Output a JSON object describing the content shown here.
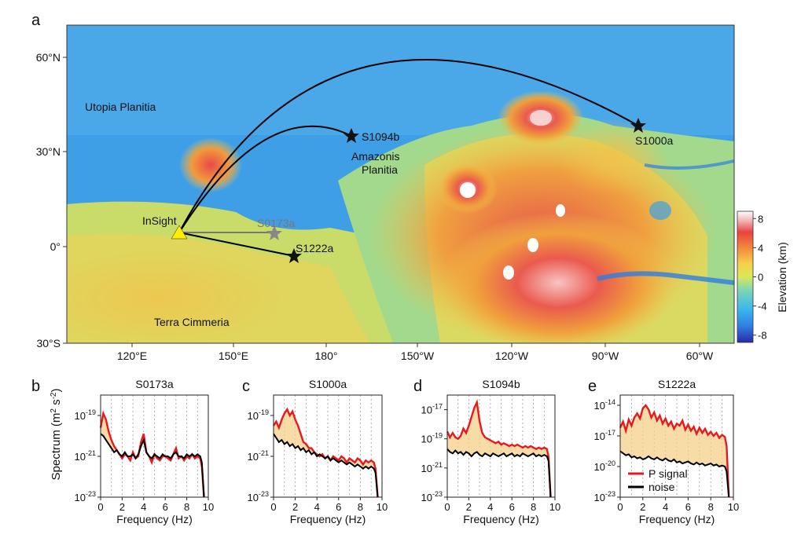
{
  "panel_letters": [
    "a",
    "b",
    "c",
    "d",
    "e"
  ],
  "map": {
    "regions": [
      "Utopia Planitia",
      "Amazonis",
      "Planitia",
      "Terra Cimmeria"
    ],
    "lat_ticks": [
      "60°N",
      "30°N",
      "0°",
      "30°S"
    ],
    "lon_ticks": [
      "120°E",
      "150°E",
      "180°",
      "150°W",
      "120°W",
      "90°W",
      "60°W"
    ],
    "lander": "InSight",
    "events": [
      {
        "name": "S1094b",
        "lon": -172,
        "lat": 35
      },
      {
        "name": "S1000a",
        "lon": -79,
        "lat": 38
      },
      {
        "name": "S0173a",
        "lon": 164,
        "lat": 5
      },
      {
        "name": "S1222a",
        "lon": 171,
        "lat": -3
      }
    ],
    "colorbar": {
      "label": "Elevation (km)",
      "ticks": [
        "8",
        "4",
        "0",
        "-4",
        "-8"
      ],
      "range": [
        -9,
        9
      ],
      "colors": [
        "#2a2aa8",
        "#2f7de0",
        "#38b7ee",
        "#7ed6b4",
        "#d9e85a",
        "#f6d04d",
        "#f28a3b",
        "#e9433f",
        "#f3b6b6",
        "#ffffff"
      ]
    }
  },
  "chart_data": [
    {
      "type": "area",
      "title": "S0173a",
      "xlabel": "Frequency (Hz)",
      "ylabel": "Spectrum (m² s⁻²)",
      "xlim": [
        0,
        10
      ],
      "ylog": true,
      "ylim_exp": [
        -23,
        -18
      ],
      "xticks": [
        "0",
        "2",
        "4",
        "6",
        "8",
        "10"
      ],
      "yticks": [
        "10",
        "10",
        "10"
      ],
      "ytick_exps": [
        "-19",
        "-21",
        "-23"
      ],
      "ytick_vals": [
        -19,
        -21,
        -23
      ],
      "x": [
        0,
        0.25,
        0.5,
        0.75,
        1,
        1.25,
        1.5,
        1.75,
        2,
        2.25,
        2.5,
        2.75,
        3,
        3.25,
        3.5,
        3.75,
        4,
        4.25,
        4.5,
        4.75,
        5,
        5.25,
        5.5,
        5.75,
        6,
        6.25,
        6.5,
        6.75,
        7,
        7.25,
        7.5,
        7.75,
        8,
        8.25,
        8.5,
        8.75,
        9,
        9.25,
        9.4,
        9.6
      ],
      "series": [
        {
          "name": "P signal",
          "color": "#e8191c",
          "values": [
            -19.6,
            -18.9,
            -19.2,
            -19.8,
            -20.2,
            -20.5,
            -20.7,
            -20.9,
            -21.1,
            -20.9,
            -21.0,
            -21.2,
            -20.8,
            -21.1,
            -21.0,
            -20.3,
            -19.9,
            -20.8,
            -21.0,
            -21.3,
            -20.9,
            -21.1,
            -21.2,
            -21.0,
            -21.0,
            -21.1,
            -21.2,
            -20.9,
            -20.6,
            -21.1,
            -21.0,
            -21.2,
            -21.0,
            -21.1,
            -20.9,
            -21.1,
            -21.0,
            -21.1,
            -21.5,
            -23
          ]
        },
        {
          "name": "noise",
          "color": "#000000",
          "values": [
            -19.9,
            -20.0,
            -20.2,
            -20.4,
            -20.6,
            -20.8,
            -20.7,
            -20.9,
            -21.0,
            -20.8,
            -21.0,
            -21.0,
            -20.9,
            -21.1,
            -20.9,
            -20.5,
            -20.2,
            -20.8,
            -21.0,
            -21.1,
            -20.9,
            -21.0,
            -21.1,
            -20.9,
            -21.0,
            -21.0,
            -21.1,
            -20.9,
            -20.8,
            -21.0,
            -21.0,
            -21.1,
            -20.9,
            -21.0,
            -20.9,
            -21.0,
            -20.9,
            -21.0,
            -21.3,
            -23
          ]
        }
      ]
    },
    {
      "type": "area",
      "title": "S1000a",
      "xlabel": "Frequency (Hz)",
      "ylabel": "",
      "xlim": [
        0,
        10
      ],
      "ylog": true,
      "ylim_exp": [
        -23,
        -18
      ],
      "xticks": [
        "0",
        "2",
        "4",
        "6",
        "8",
        "10"
      ],
      "yticks": [
        "10",
        "10",
        "10"
      ],
      "ytick_exps": [
        "-19",
        "-21",
        "-23"
      ],
      "ytick_vals": [
        -19,
        -21,
        -23
      ],
      "x": [
        0,
        0.25,
        0.5,
        0.75,
        1,
        1.25,
        1.5,
        1.75,
        2,
        2.25,
        2.5,
        2.75,
        3,
        3.25,
        3.5,
        3.75,
        4,
        4.25,
        4.5,
        4.75,
        5,
        5.25,
        5.5,
        5.75,
        6,
        6.25,
        6.5,
        6.75,
        7,
        7.25,
        7.5,
        7.75,
        8,
        8.25,
        8.5,
        8.75,
        9,
        9.25,
        9.4,
        9.6
      ],
      "series": [
        {
          "name": "P signal",
          "color": "#e8191c",
          "values": [
            -19.5,
            -19.3,
            -19.6,
            -19.2,
            -18.9,
            -18.7,
            -19.0,
            -18.8,
            -19.2,
            -19.5,
            -19.9,
            -20.3,
            -20.4,
            -20.6,
            -20.6,
            -20.8,
            -20.9,
            -21.0,
            -20.9,
            -21.1,
            -21.0,
            -21.2,
            -21.0,
            -21.1,
            -21.2,
            -21.0,
            -21.1,
            -21.3,
            -21.1,
            -21.2,
            -21.3,
            -21.1,
            -21.2,
            -21.4,
            -21.2,
            -21.3,
            -21.2,
            -21.3,
            -21.6,
            -23
          ]
        },
        {
          "name": "noise",
          "color": "#000000",
          "values": [
            -19.9,
            -20.1,
            -20.3,
            -20.2,
            -20.4,
            -20.3,
            -20.5,
            -20.4,
            -20.6,
            -20.5,
            -20.7,
            -20.6,
            -20.8,
            -20.7,
            -20.9,
            -20.8,
            -21.0,
            -20.9,
            -21.0,
            -21.1,
            -21.0,
            -21.2,
            -21.1,
            -21.2,
            -21.3,
            -21.2,
            -21.3,
            -21.4,
            -21.3,
            -21.4,
            -21.5,
            -21.4,
            -21.5,
            -21.6,
            -21.5,
            -21.6,
            -21.5,
            -21.6,
            -21.8,
            -23
          ]
        }
      ]
    },
    {
      "type": "area",
      "title": "S1094b",
      "xlabel": "Frequency (Hz)",
      "ylabel": "",
      "xlim": [
        0,
        10
      ],
      "ylog": true,
      "ylim_exp": [
        -23,
        -16
      ],
      "xticks": [
        "0",
        "2",
        "4",
        "6",
        "8",
        "10"
      ],
      "yticks": [
        "10",
        "10",
        "10",
        "10"
      ],
      "ytick_exps": [
        "-17",
        "-19",
        "-21",
        "-23"
      ],
      "ytick_vals": [
        -17,
        -19,
        -21,
        -23
      ],
      "x": [
        0,
        0.25,
        0.5,
        0.75,
        1,
        1.25,
        1.5,
        1.75,
        2,
        2.25,
        2.5,
        2.75,
        3,
        3.25,
        3.5,
        3.75,
        4,
        4.25,
        4.5,
        4.75,
        5,
        5.25,
        5.5,
        5.75,
        6,
        6.25,
        6.5,
        6.75,
        7,
        7.25,
        7.5,
        7.75,
        8,
        8.25,
        8.5,
        8.75,
        9,
        9.25,
        9.4,
        9.6
      ],
      "series": [
        {
          "name": "P signal",
          "color": "#e8191c",
          "values": [
            -18.5,
            -18.9,
            -18.6,
            -18.9,
            -19.0,
            -18.8,
            -18.3,
            -18.6,
            -18.1,
            -17.5,
            -16.9,
            -16.5,
            -17.8,
            -18.6,
            -18.9,
            -19.0,
            -19.1,
            -19.2,
            -19.3,
            -19.2,
            -19.4,
            -19.3,
            -19.4,
            -19.5,
            -19.4,
            -19.5,
            -19.4,
            -19.5,
            -19.6,
            -19.5,
            -19.6,
            -19.5,
            -19.6,
            -19.7,
            -19.6,
            -19.7,
            -19.6,
            -19.7,
            -20.2,
            -23
          ]
        },
        {
          "name": "noise",
          "color": "#000000",
          "values": [
            -19.7,
            -19.9,
            -20.0,
            -19.8,
            -20.0,
            -19.9,
            -20.1,
            -19.9,
            -20.0,
            -20.2,
            -20.0,
            -19.9,
            -20.1,
            -20.2,
            -20.0,
            -20.1,
            -20.2,
            -20.0,
            -20.1,
            -20.2,
            -20.1,
            -20.0,
            -20.2,
            -20.1,
            -20.0,
            -20.2,
            -20.1,
            -20.2,
            -20.0,
            -20.1,
            -20.2,
            -20.1,
            -20.0,
            -20.2,
            -20.1,
            -20.2,
            -20.1,
            -20.2,
            -20.5,
            -23
          ]
        }
      ]
    },
    {
      "type": "area",
      "title": "S1222a",
      "xlabel": "Frequency (Hz)",
      "ylabel": "",
      "xlim": [
        0,
        10
      ],
      "ylog": true,
      "ylim_exp": [
        -23,
        -13
      ],
      "xticks": [
        "0",
        "2",
        "4",
        "6",
        "8",
        "10"
      ],
      "yticks": [
        "10",
        "10",
        "10",
        "10"
      ],
      "ytick_exps": [
        "-14",
        "-17",
        "-20",
        "-23"
      ],
      "ytick_vals": [
        -14,
        -17,
        -20,
        -23
      ],
      "x": [
        0,
        0.25,
        0.5,
        0.75,
        1,
        1.25,
        1.5,
        1.75,
        2,
        2.25,
        2.5,
        2.75,
        3,
        3.25,
        3.5,
        3.75,
        4,
        4.25,
        4.5,
        4.75,
        5,
        5.25,
        5.5,
        5.75,
        6,
        6.25,
        6.5,
        6.75,
        7,
        7.25,
        7.5,
        7.75,
        8,
        8.25,
        8.5,
        8.75,
        9,
        9.25,
        9.4,
        9.6
      ],
      "series": [
        {
          "name": "P signal",
          "color": "#e8191c",
          "values": [
            -16.2,
            -15.6,
            -16.5,
            -15.4,
            -16.0,
            -15.2,
            -14.8,
            -15.3,
            -14.3,
            -14.0,
            -14.4,
            -15.2,
            -14.7,
            -15.5,
            -15.0,
            -15.8,
            -15.3,
            -16.0,
            -15.6,
            -16.3,
            -15.8,
            -16.0,
            -15.5,
            -16.4,
            -15.9,
            -16.5,
            -16.1,
            -16.8,
            -16.2,
            -16.7,
            -16.3,
            -16.9,
            -16.6,
            -17.0,
            -16.7,
            -17.2,
            -16.9,
            -17.1,
            -18.0,
            -23
          ]
        },
        {
          "name": "noise",
          "color": "#000000",
          "values": [
            -18.5,
            -18.7,
            -18.9,
            -18.8,
            -19.1,
            -19.0,
            -19.2,
            -19.1,
            -19.3,
            -19.2,
            -19.0,
            -19.2,
            -19.3,
            -19.1,
            -19.3,
            -19.4,
            -19.2,
            -19.4,
            -19.5,
            -19.3,
            -19.6,
            -19.5,
            -19.7,
            -19.6,
            -19.5,
            -19.7,
            -19.8,
            -19.6,
            -19.8,
            -19.7,
            -19.9,
            -19.8,
            -19.7,
            -19.9,
            -19.8,
            -20.0,
            -19.9,
            -20.0,
            -20.5,
            -23
          ]
        }
      ],
      "legend": {
        "placement": "bottom-left",
        "entries": [
          "P signal",
          "noise"
        ]
      }
    }
  ]
}
